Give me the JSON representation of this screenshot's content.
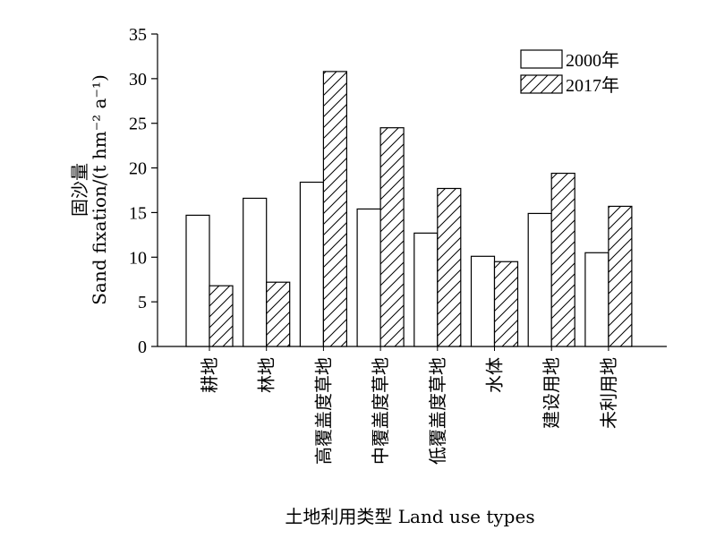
{
  "chart_data": {
    "type": "bar",
    "categories": [
      "耕地",
      "林地",
      "高覆盖度草地",
      "中覆盖度草地",
      "低覆盖度草地",
      "水体",
      "建设用地",
      "未利用地"
    ],
    "series": [
      {
        "name": "2000年",
        "values": [
          14.7,
          16.6,
          18.4,
          15.4,
          12.7,
          10.1,
          14.9,
          10.5
        ],
        "fill": "white"
      },
      {
        "name": "2017年",
        "values": [
          6.8,
          7.2,
          30.8,
          24.5,
          17.7,
          9.5,
          19.4,
          15.7
        ],
        "fill": "hatch"
      }
    ],
    "ylabel_cn": "固沙量",
    "ylabel_en": "Sand fixation/(t hm⁻² a⁻¹)",
    "xlabel": "土地利用类型 Land use types",
    "ylim": [
      0,
      35
    ],
    "yticks": [
      "0",
      "5",
      "10",
      "15",
      "20",
      "25",
      "30",
      "35"
    ],
    "grid": false,
    "legend_position": "top-right",
    "colors": {
      "bar_stroke": "#000000",
      "bar_fill": "#ffffff",
      "hatch": "#000000"
    }
  }
}
